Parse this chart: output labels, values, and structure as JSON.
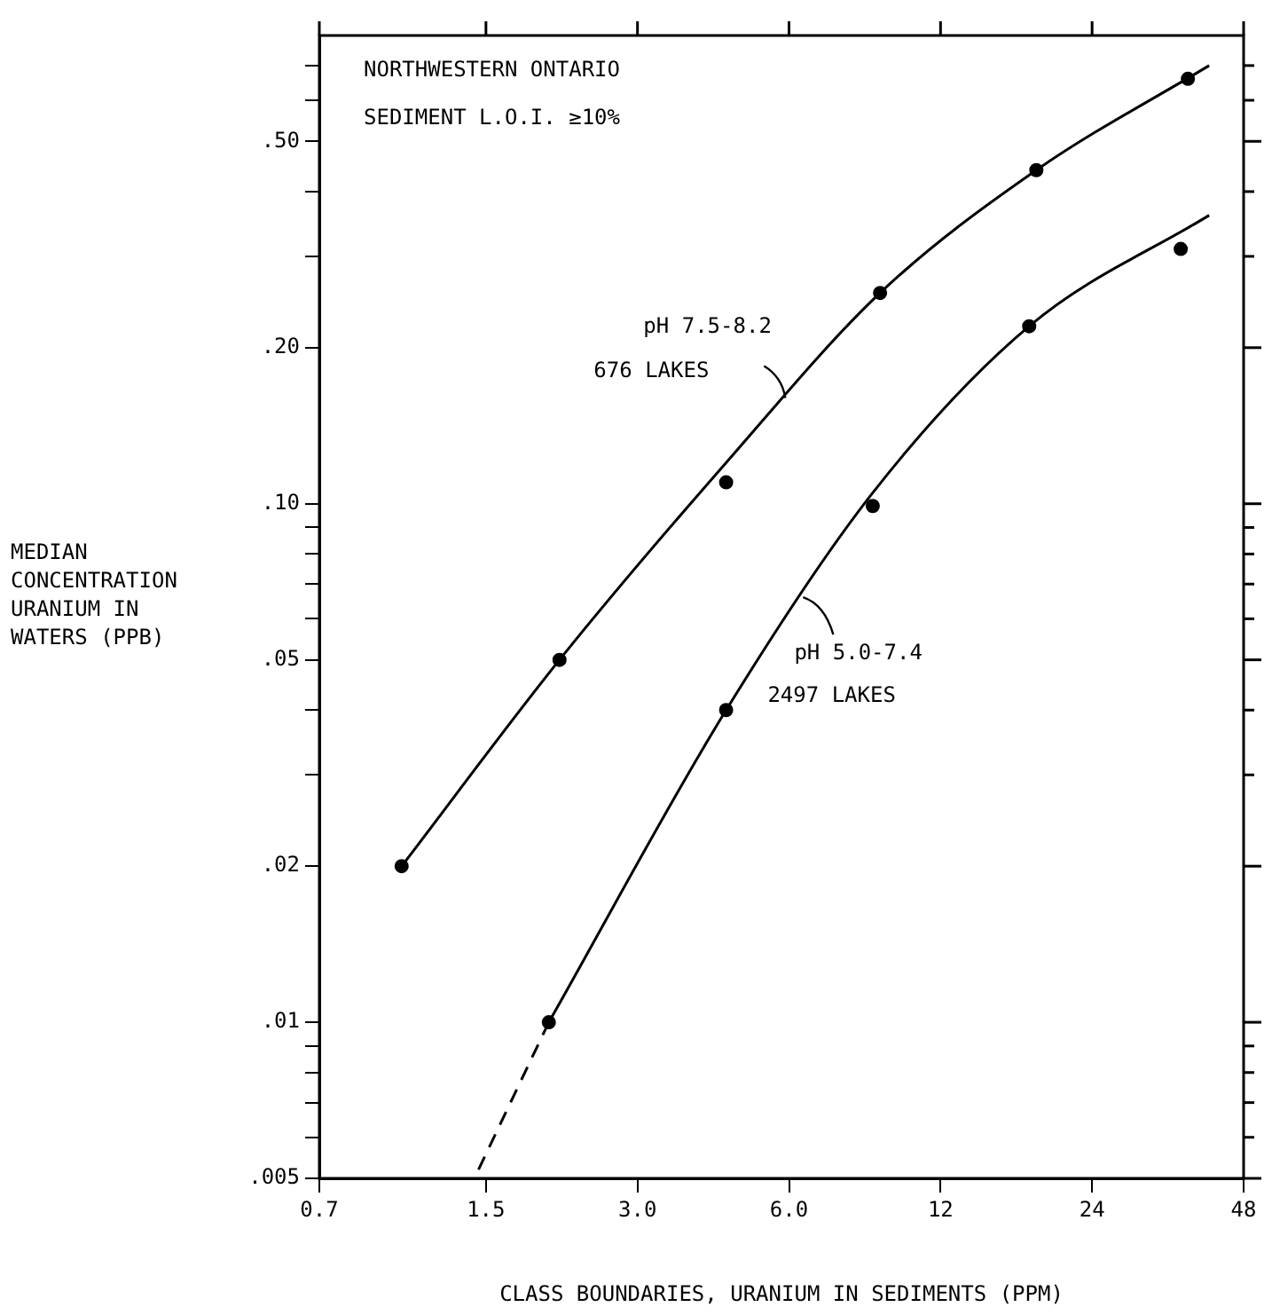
{
  "chart_data": {
    "type": "scatter",
    "xlabel": "CLASS BOUNDARIES, URANIUM IN SEDIMENTS (PPM)",
    "ylabel": "MEDIAN\nCONCENTRATION\nURANIUM IN\nWATERS (PPB)",
    "log": "xy",
    "grid": false,
    "xlim": [
      0.7,
      48
    ],
    "xticks": [
      0.7,
      1.5,
      {
        "value": 3,
        "label": "3.0"
      },
      {
        "value": 6,
        "label": "6.0"
      },
      12,
      24,
      48
    ],
    "ylim": [
      0.005,
      0.8
    ],
    "yticks": [
      {
        "value": 0.005,
        "label": ".005"
      },
      {
        "value": 0.006,
        "label": null
      },
      {
        "value": 0.007,
        "label": null
      },
      {
        "value": 0.008,
        "label": null
      },
      {
        "value": 0.009,
        "label": null
      },
      {
        "value": 0.01,
        "label": ".01"
      },
      {
        "value": 0.02,
        "label": ".02"
      },
      {
        "value": 0.03,
        "label": null
      },
      {
        "value": 0.04,
        "label": null
      },
      {
        "value": 0.05,
        "label": ".05"
      },
      {
        "value": 0.06,
        "label": null
      },
      {
        "value": 0.07,
        "label": null
      },
      {
        "value": 0.08,
        "label": null
      },
      {
        "value": 0.09,
        "label": null
      },
      {
        "value": 0.1,
        "label": ".10"
      },
      {
        "value": 0.2,
        "label": ".20"
      },
      {
        "value": 0.3,
        "label": null
      },
      {
        "value": 0.4,
        "label": null
      },
      {
        "value": 0.5,
        "label": ".50"
      },
      {
        "value": 0.6,
        "label": null
      },
      {
        "value": 0.7,
        "label": null
      }
    ],
    "series": [
      {
        "type": "scatter",
        "marker": "circle",
        "color": "#000000",
        "x": [
          1.02,
          2.1,
          4.5,
          9.1,
          18.6,
          37.2
        ],
        "values": [
          0.02,
          0.05,
          0.11,
          0.255,
          0.44,
          0.66
        ]
      },
      {
        "type": "line",
        "marker": "none",
        "line_style": "solid",
        "color": "#000000",
        "x": [
          1.02,
          2.1,
          4.5,
          9.1,
          18.6,
          41
        ],
        "values": [
          0.02,
          0.05,
          0.12,
          0.255,
          0.44,
          0.7
        ]
      },
      {
        "type": "scatter",
        "marker": "circle",
        "color": "#000000",
        "x": [
          2.0,
          4.5,
          8.8,
          18.0,
          36
        ],
        "values": [
          0.01,
          0.04,
          0.099,
          0.22,
          0.31
        ]
      },
      {
        "type": "line",
        "marker": "none",
        "line_style": "solid",
        "color": "#000000",
        "x": [
          2.0,
          4.5,
          8.8,
          18.0,
          41
        ],
        "values": [
          0.01,
          0.04,
          0.105,
          0.22,
          0.36
        ]
      },
      {
        "type": "line",
        "marker": "none",
        "line_style": "dashed",
        "color": "#000000",
        "x": [
          1.45,
          2.0
        ],
        "values": [
          0.0052,
          0.01
        ]
      }
    ],
    "annotations": [
      "NORTHWESTERN ONTARIO",
      "SEDIMENT L.O.I. ≥10%",
      {
        "text": "pH 7.5-8.2\n676 LAKES",
        "x": 5.9,
        "y": 0.16
      },
      {
        "text": "pH 5.0-7.4\n2497 LAKES",
        "x": 6.4,
        "y": 0.066
      }
    ]
  }
}
